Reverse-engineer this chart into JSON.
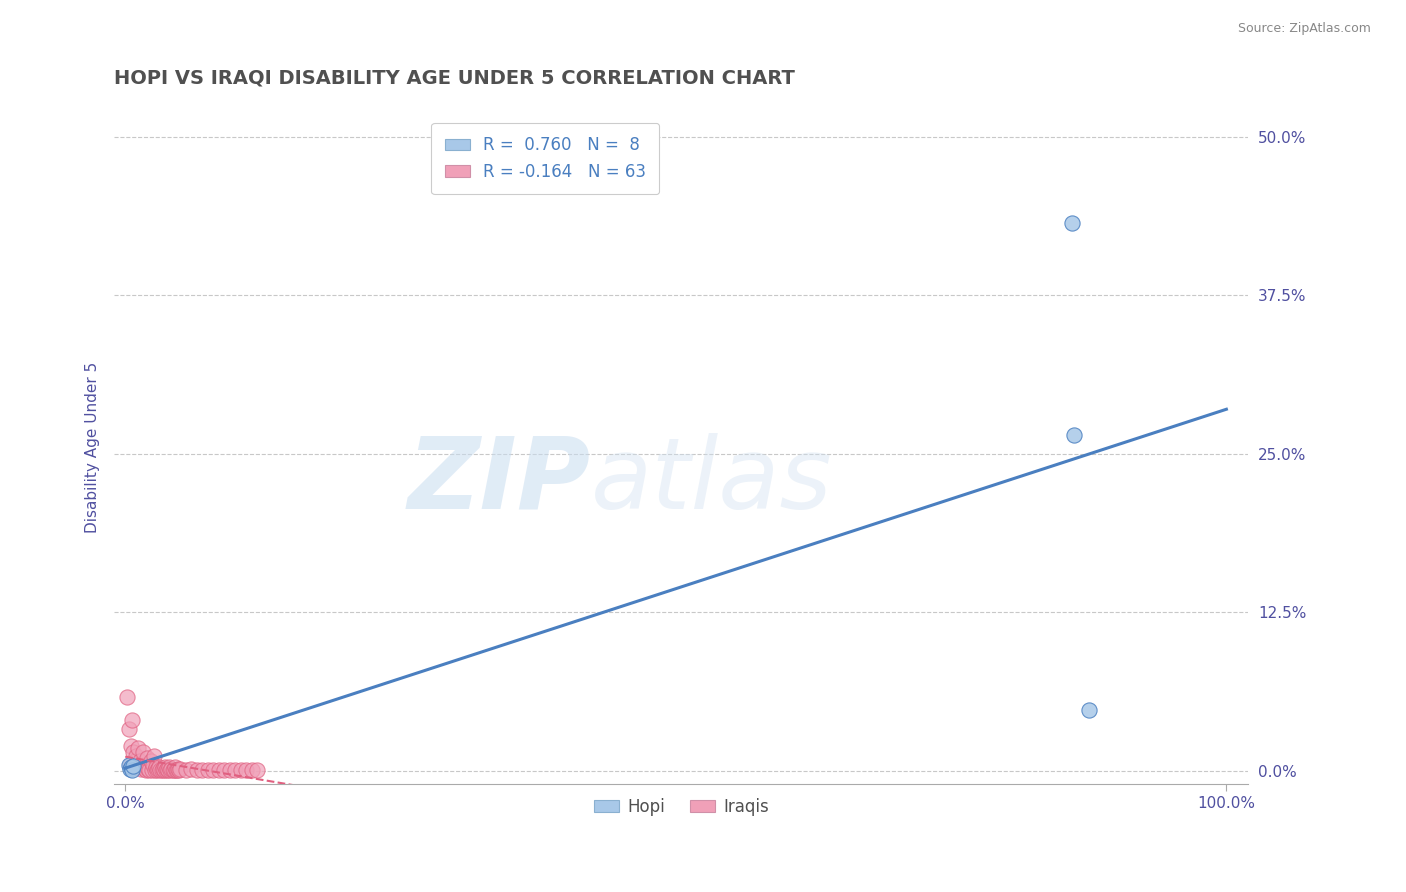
{
  "title": "HOPI VS IRAQI DISABILITY AGE UNDER 5 CORRELATION CHART",
  "source": "Source: ZipAtlas.com",
  "ylabel": "Disability Age Under 5",
  "xlim": [
    -0.01,
    1.02
  ],
  "ylim": [
    -0.01,
    0.52
  ],
  "yticks": [
    0.0,
    0.125,
    0.25,
    0.375,
    0.5
  ],
  "ytick_labels": [
    "0.0%",
    "12.5%",
    "25.0%",
    "37.5%",
    "50.0%"
  ],
  "xtick_labels_show": [
    "0.0%",
    "100.0%"
  ],
  "hopi_color": "#a8c8e8",
  "iraqi_color": "#f0a0b8",
  "hopi_line_color": "#4a7fc0",
  "iraqi_line_color": "#e06080",
  "hopi_R": 0.76,
  "hopi_N": 8,
  "iraqi_R": -0.164,
  "iraqi_N": 63,
  "hopi_x": [
    0.003,
    0.004,
    0.005,
    0.006,
    0.007,
    0.86,
    0.862,
    0.875
  ],
  "hopi_y": [
    0.005,
    0.002,
    0.003,
    0.001,
    0.004,
    0.432,
    0.265,
    0.048
  ],
  "iraqi_x": [
    0.002,
    0.003,
    0.004,
    0.005,
    0.006,
    0.007,
    0.008,
    0.009,
    0.01,
    0.011,
    0.012,
    0.013,
    0.014,
    0.015,
    0.016,
    0.017,
    0.018,
    0.019,
    0.02,
    0.021,
    0.022,
    0.023,
    0.024,
    0.025,
    0.026,
    0.027,
    0.028,
    0.029,
    0.03,
    0.031,
    0.032,
    0.033,
    0.034,
    0.035,
    0.036,
    0.037,
    0.038,
    0.039,
    0.04,
    0.041,
    0.042,
    0.043,
    0.044,
    0.045,
    0.046,
    0.047,
    0.048,
    0.049,
    0.05,
    0.055,
    0.06,
    0.065,
    0.07,
    0.075,
    0.08,
    0.085,
    0.09,
    0.095,
    0.1,
    0.105,
    0.11,
    0.115,
    0.12
  ],
  "iraqi_y": [
    0.058,
    0.033,
    0.005,
    0.02,
    0.04,
    0.015,
    0.005,
    0.008,
    0.012,
    0.003,
    0.018,
    0.008,
    0.002,
    0.005,
    0.015,
    0.003,
    0.002,
    0.001,
    0.01,
    0.002,
    0.001,
    0.008,
    0.001,
    0.005,
    0.012,
    0.001,
    0.003,
    0.001,
    0.002,
    0.003,
    0.001,
    0.001,
    0.002,
    0.001,
    0.003,
    0.001,
    0.002,
    0.001,
    0.003,
    0.001,
    0.002,
    0.001,
    0.001,
    0.003,
    0.001,
    0.001,
    0.002,
    0.001,
    0.002,
    0.001,
    0.002,
    0.001,
    0.001,
    0.001,
    0.001,
    0.001,
    0.001,
    0.001,
    0.001,
    0.001,
    0.001,
    0.001,
    0.001
  ],
  "background_color": "#ffffff",
  "watermark_zip": "ZIP",
  "watermark_atlas": "atlas",
  "grid_color": "#c8c8c8",
  "title_color": "#505050",
  "axis_label_color": "#5050a0",
  "tick_color": "#5050a0",
  "legend_text_color": "#4a7fc0"
}
